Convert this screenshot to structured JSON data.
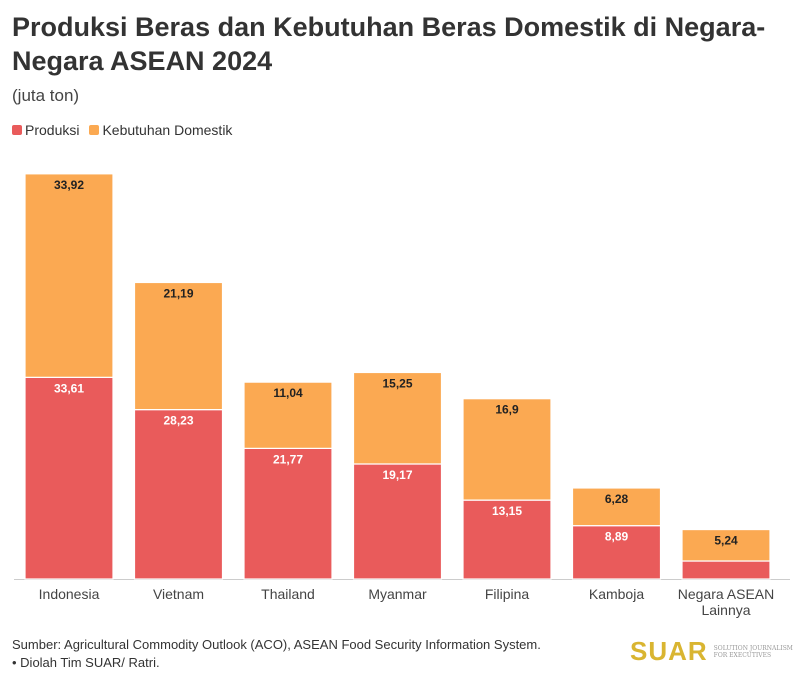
{
  "header": {
    "title": "Produksi Beras dan Kebutuhan Beras Domestik di Negara-Negara ASEAN 2024",
    "subtitle": "(juta ton)"
  },
  "legend": {
    "items": [
      {
        "label": "Produksi",
        "color": "#e95b5b"
      },
      {
        "label": "Kebutuhan Domestik",
        "color": "#fba952"
      }
    ]
  },
  "chart_data": {
    "type": "bar",
    "stacked": true,
    "categories": [
      "Indonesia",
      "Vietnam",
      "Thailand",
      "Myanmar",
      "Filipina",
      "Kamboja",
      "Negara ASEAN Lainnya"
    ],
    "series": [
      {
        "name": "Produksi",
        "color": "#e95b5b",
        "values": [
          33.61,
          28.23,
          21.77,
          19.17,
          13.15,
          8.89,
          3.0
        ],
        "labels": [
          "33,61",
          "28,23",
          "21,77",
          "19,17",
          "13,15",
          "8,89",
          ""
        ]
      },
      {
        "name": "Kebutuhan Domestik",
        "color": "#fba952",
        "values": [
          33.92,
          21.19,
          11.04,
          15.25,
          16.9,
          6.28,
          5.24
        ],
        "labels": [
          "33,92",
          "21,19",
          "11,04",
          "15,25",
          "16,9",
          "6,28",
          "5,24"
        ]
      }
    ],
    "title": "Produksi Beras dan Kebutuhan Beras Domestik di Negara-Negara ASEAN 2024",
    "ylabel": "",
    "grid": false,
    "legend_position": "top-left"
  },
  "footer": {
    "source": "Sumber: Agricultural Commodity Outlook (ACO), ASEAN Food Security Information System.",
    "note": "• Diolah Tim SUAR/ Ratri."
  },
  "logo": {
    "text": "SUAR",
    "tagline": "SOLUTION JOURNALISM FOR EXECUTIVES"
  }
}
